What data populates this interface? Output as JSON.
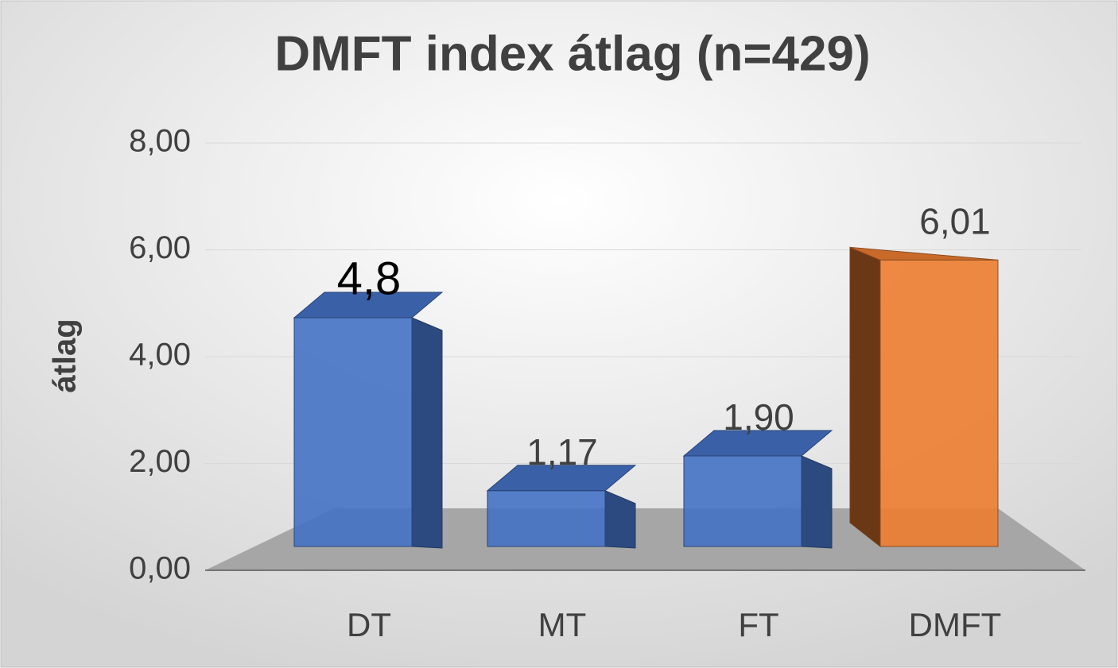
{
  "chart_data": {
    "type": "bar3d",
    "title": "DMFT index átlag (n=429)",
    "y_label": "átlag",
    "categories": [
      "DT",
      "MT",
      "FT",
      "DMFT"
    ],
    "values": [
      4.8,
      1.17,
      1.9,
      6.01
    ],
    "value_labels": [
      "4,8",
      "1,17",
      "1,90",
      "6,01"
    ],
    "colors": [
      "#4472c4",
      "#4472c4",
      "#4472c4",
      "#ed7d31"
    ],
    "ylim": [
      0,
      8
    ],
    "yticks": [
      {
        "value": 0,
        "label": "0,00"
      },
      {
        "value": 2,
        "label": "2,00"
      },
      {
        "value": 4,
        "label": "4,00"
      },
      {
        "value": 6,
        "label": "6,00"
      },
      {
        "value": 8,
        "label": "8,00"
      }
    ],
    "grid": true
  }
}
